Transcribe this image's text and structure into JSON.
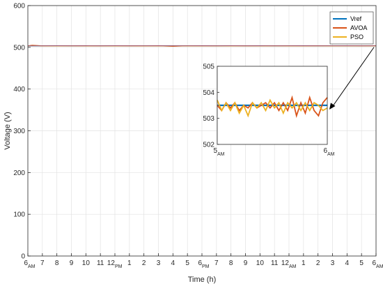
{
  "chart_data": {
    "type": "line",
    "xlabel": "Time (h)",
    "ylabel": "Voltage (V)",
    "ylim": [
      0,
      600
    ],
    "y_ticks": [
      0,
      100,
      200,
      300,
      400,
      500,
      600
    ],
    "xlim": [
      6,
      30
    ],
    "x_ticks": [
      {
        "main": "6",
        "sub": "AM"
      },
      {
        "main": "7",
        "sub": ""
      },
      {
        "main": "8",
        "sub": ""
      },
      {
        "main": "9",
        "sub": ""
      },
      {
        "main": "10",
        "sub": ""
      },
      {
        "main": "11",
        "sub": ""
      },
      {
        "main": "12",
        "sub": "PM"
      },
      {
        "main": "1",
        "sub": ""
      },
      {
        "main": "2",
        "sub": ""
      },
      {
        "main": "3",
        "sub": ""
      },
      {
        "main": "4",
        "sub": ""
      },
      {
        "main": "5",
        "sub": ""
      },
      {
        "main": "6",
        "sub": "PM"
      },
      {
        "main": "7",
        "sub": ""
      },
      {
        "main": "8",
        "sub": ""
      },
      {
        "main": "9",
        "sub": ""
      },
      {
        "main": "10",
        "sub": ""
      },
      {
        "main": "11",
        "sub": ""
      },
      {
        "main": "12",
        "sub": "AM"
      },
      {
        "main": "1",
        "sub": ""
      },
      {
        "main": "2",
        "sub": ""
      },
      {
        "main": "3",
        "sub": ""
      },
      {
        "main": "4",
        "sub": ""
      },
      {
        "main": "5",
        "sub": ""
      },
      {
        "main": "6",
        "sub": "AM"
      }
    ],
    "grid": true,
    "legend_position": "top-right",
    "series": [
      {
        "name": "Vref",
        "color": "#0072BD",
        "x": [
          6,
          30
        ],
        "values": [
          503.5,
          503.5
        ]
      },
      {
        "name": "AVOA",
        "color": "#D95319",
        "x": [
          6,
          6.3,
          7,
          8,
          9,
          10,
          11,
          12,
          13,
          14,
          15,
          16,
          17,
          18,
          19,
          20,
          21,
          22,
          23,
          24,
          25,
          26,
          27,
          28,
          29,
          30
        ],
        "values": [
          503.5,
          505,
          503.5,
          503.4,
          503.6,
          503.5,
          503.4,
          503.6,
          503.5,
          503.3,
          503.7,
          502.5,
          503.6,
          503.5,
          503.4,
          503.6,
          503.5,
          503.4,
          503.6,
          503.5,
          503.3,
          503.7,
          503.4,
          503.6,
          503.5,
          503.7
        ]
      },
      {
        "name": "PSO",
        "color": "#EDB120",
        "x": [
          6,
          6.3,
          7,
          8,
          9,
          10,
          11,
          12,
          13,
          14,
          15,
          16,
          17,
          18,
          19,
          20,
          21,
          22,
          23,
          24,
          25,
          26,
          27,
          28,
          29,
          30
        ],
        "values": [
          503.6,
          504,
          503.6,
          503.3,
          503.6,
          503.4,
          503.6,
          503.3,
          503.6,
          503.5,
          503.4,
          503.6,
          503.5,
          503.4,
          503.6,
          503.3,
          503.6,
          503.4,
          503.6,
          503.5,
          503.4,
          503.6,
          503.5,
          503.4,
          503.6,
          503.5
        ]
      }
    ],
    "inset": {
      "xlim": [
        5,
        6
      ],
      "ylim": [
        502,
        505
      ],
      "y_ticks": [
        502,
        503,
        504,
        505
      ],
      "x_ticks": [
        {
          "main": "5",
          "sub": "AM"
        },
        {
          "main": "6",
          "sub": "AM"
        }
      ],
      "grid": false,
      "series": [
        {
          "name": "Vref",
          "color": "#0072BD",
          "x": [
            5,
            6
          ],
          "values": [
            503.5,
            503.5
          ]
        },
        {
          "name": "AVOA",
          "color": "#D95319",
          "x": [
            5,
            5.04,
            5.08,
            5.12,
            5.16,
            5.2,
            5.24,
            5.28,
            5.32,
            5.36,
            5.4,
            5.44,
            5.48,
            5.52,
            5.56,
            5.6,
            5.64,
            5.68,
            5.72,
            5.76,
            5.8,
            5.84,
            5.88,
            5.92,
            5.96,
            6
          ],
          "values": [
            503.5,
            503.3,
            503.6,
            503.4,
            503.6,
            503.3,
            503.5,
            503.4,
            503.6,
            503.4,
            503.5,
            503.6,
            503.4,
            503.6,
            503.3,
            503.6,
            503.3,
            503.8,
            503.1,
            503.6,
            503.2,
            503.8,
            503.3,
            503.1,
            503.6,
            503.8
          ]
        },
        {
          "name": "PSO",
          "color": "#EDB120",
          "x": [
            5,
            5.04,
            5.08,
            5.12,
            5.16,
            5.2,
            5.24,
            5.28,
            5.32,
            5.36,
            5.4,
            5.44,
            5.48,
            5.52,
            5.56,
            5.6,
            5.64,
            5.68,
            5.72,
            5.76,
            5.8,
            5.84,
            5.88,
            5.92,
            5.96,
            6
          ],
          "values": [
            503.7,
            503.3,
            503.6,
            503.3,
            503.6,
            503.2,
            503.5,
            503.1,
            503.6,
            503.4,
            503.6,
            503.3,
            503.7,
            503.4,
            503.6,
            503.2,
            503.6,
            503.4,
            503.6,
            503.3,
            503.6,
            503.3,
            503.6,
            503.5,
            503.3,
            503.4
          ]
        }
      ]
    }
  }
}
